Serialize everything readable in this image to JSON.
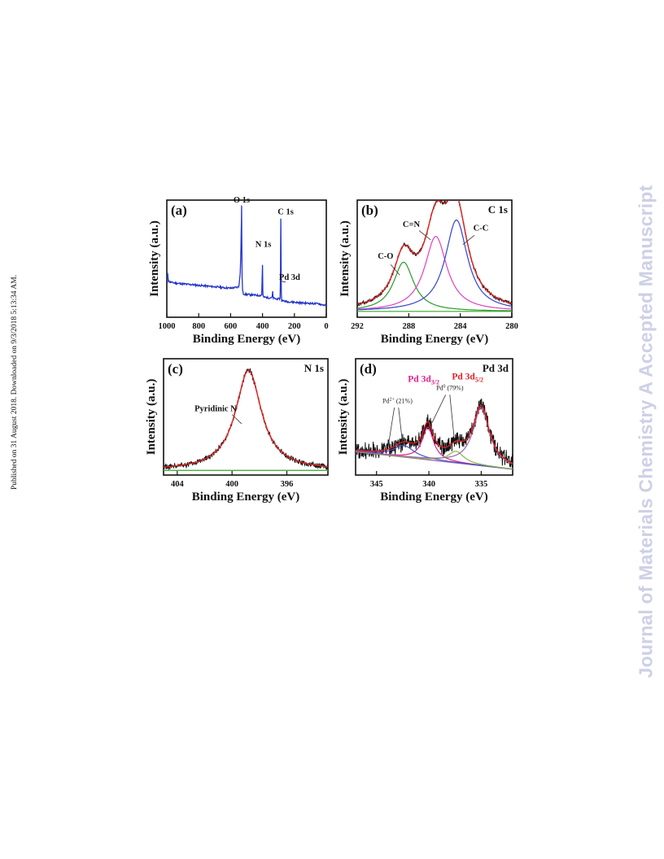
{
  "page": {
    "sidebar_text": "Published on 31 August 2018. Downloaded on 9/3/2018 5:13:34 AM.",
    "watermark": "Journal of Materials Chemistry A Accepted Manuscript"
  },
  "colors": {
    "survey": "#2233cc",
    "raw": "#111111",
    "envelope": "#e02020",
    "co": "#2a9a2a",
    "cn": "#e040c0",
    "cc": "#3344cc",
    "background": "#33aa22",
    "pd_pink": "#e0208a",
    "pd_green": "#88b844",
    "pd_blue": "#4455cc",
    "pd_purple": "#9966aa"
  },
  "chart_data": [
    {
      "id": "a",
      "type": "line",
      "panel_label": "(a)",
      "title": "",
      "xlabel": "Binding Energy (eV)",
      "ylabel": "Intensity (a.u.)",
      "xlim": [
        1000,
        0
      ],
      "ylim": [
        0,
        100
      ],
      "xticks": [
        1000,
        800,
        600,
        400,
        200,
        0
      ],
      "series": [
        {
          "kind": "survey",
          "color": "#2233cc",
          "x": [
            1000,
            995,
            990,
            980,
            960,
            940,
            920,
            900,
            880,
            860,
            840,
            820,
            800,
            780,
            760,
            740,
            720,
            700,
            680,
            660,
            640,
            620,
            600,
            580,
            560,
            550,
            545,
            540,
            535,
            532,
            531,
            530,
            528,
            525,
            520,
            500,
            480,
            460,
            440,
            420,
            405,
            400,
            398,
            396,
            390,
            380,
            360,
            340,
            336,
            334,
            330,
            320,
            300,
            290,
            287,
            285,
            284,
            282,
            280,
            270,
            250,
            200,
            150,
            100,
            60,
            50,
            40,
            30,
            20,
            10,
            0
          ],
          "y": [
            33,
            38,
            31,
            30,
            29.5,
            29,
            28.8,
            28.5,
            28.2,
            28,
            27.8,
            27.5,
            27.2,
            27,
            26.8,
            26.5,
            26.2,
            26,
            25.8,
            25.5,
            25.2,
            25,
            24.8,
            25.2,
            25.5,
            26,
            30,
            38,
            60,
            83,
            95,
            70,
            35,
            23,
            20,
            19.5,
            19.2,
            19,
            18.8,
            18.6,
            19,
            45,
            22,
            17.5,
            17.2,
            17,
            16.6,
            17,
            22,
            17,
            16.2,
            15.8,
            15.5,
            16,
            40,
            84,
            65,
            22,
            14.5,
            14,
            13.5,
            12.8,
            12.2,
            11.8,
            11.5,
            11.8,
            11.2,
            10.8,
            10.6,
            10.4,
            10.2
          ]
        }
      ],
      "annotations": [
        {
          "text": "O 1s",
          "x": 531,
          "y": 98
        },
        {
          "text": "N 1s",
          "x": 395,
          "y": 60
        },
        {
          "text": "C 1s",
          "x": 255,
          "y": 88
        },
        {
          "text": "Pd 3d",
          "x": 230,
          "y": 32
        }
      ]
    },
    {
      "id": "b",
      "type": "line",
      "panel_label": "(b)",
      "title": "C 1s",
      "xlabel": "Binding Energy (eV)",
      "ylabel": "Intensity (a.u.)",
      "xlim": [
        292,
        280
      ],
      "ylim": [
        0,
        100
      ],
      "xticks": [
        292,
        288,
        284,
        280
      ],
      "baseline": [
        [
          292,
          5
        ],
        [
          280,
          5
        ]
      ],
      "components": [
        {
          "name": "C-O",
          "center": 288.4,
          "height": 42,
          "width": 0.95,
          "color": "#2a9a2a"
        },
        {
          "name": "C=N",
          "center": 285.9,
          "height": 64,
          "width": 1.05,
          "color": "#e040c0"
        },
        {
          "name": "C-C",
          "center": 284.3,
          "height": 78,
          "width": 1.05,
          "color": "#3344cc"
        }
      ],
      "annotations": [
        {
          "text": "C-O",
          "x": 289.8,
          "y": 50
        },
        {
          "text": "C=N",
          "x": 287.8,
          "y": 77
        },
        {
          "text": "C-C",
          "x": 282.4,
          "y": 74
        }
      ]
    },
    {
      "id": "c",
      "type": "line",
      "panel_label": "(c)",
      "title": "N 1s",
      "xlabel": "Binding Energy (eV)",
      "ylabel": "Intensity (a.u.)",
      "xlim": [
        405,
        393
      ],
      "ylim": [
        0,
        100
      ],
      "xticks": [
        404,
        400,
        396
      ],
      "baseline": [
        [
          405,
          4
        ],
        [
          393,
          4
        ]
      ],
      "components": [
        {
          "name": "Pyridinic N",
          "center": 398.8,
          "height": 86,
          "width": 1.15,
          "color": "#e02020"
        }
      ],
      "annotations": [
        {
          "text": "Pyridinic N",
          "x": 401.2,
          "y": 55
        }
      ]
    },
    {
      "id": "d",
      "type": "line",
      "panel_label": "(d)",
      "title": "Pd 3d",
      "xlabel": "Binding Energy (eV)",
      "ylabel": "Intensity (a.u.)",
      "xlim": [
        347,
        332
      ],
      "ylim": [
        0,
        100
      ],
      "xticks": [
        345,
        340,
        335
      ],
      "baseline": [
        [
          347,
          20
        ],
        [
          332,
          5
        ]
      ],
      "components": [
        {
          "name": "Pd0 3d3/2",
          "center": 340.1,
          "height": 28,
          "width": 0.65,
          "color": "#e0208a"
        },
        {
          "name": "Pd2+ 3d3/2",
          "center": 342.4,
          "height": 10,
          "width": 1.2,
          "color": "#4455cc"
        },
        {
          "name": "Pd2+ 3d5/2",
          "center": 337.4,
          "height": 10,
          "width": 0.9,
          "color": "#88b844"
        },
        {
          "name": "Pd0 3d5/2",
          "center": 335.0,
          "height": 50,
          "width": 0.95,
          "color": "#9966aa"
        }
      ],
      "annotations": [
        {
          "text": "Pd 3d3/2",
          "x": 340.5,
          "y": 80
        },
        {
          "text": "Pd 3d5/2",
          "x": 336.3,
          "y": 82
        },
        {
          "text": "Pd0 (79%)",
          "x": 338.0,
          "y": 73
        },
        {
          "text": "Pd2+ (21%)",
          "x": 343.0,
          "y": 62
        }
      ]
    }
  ]
}
